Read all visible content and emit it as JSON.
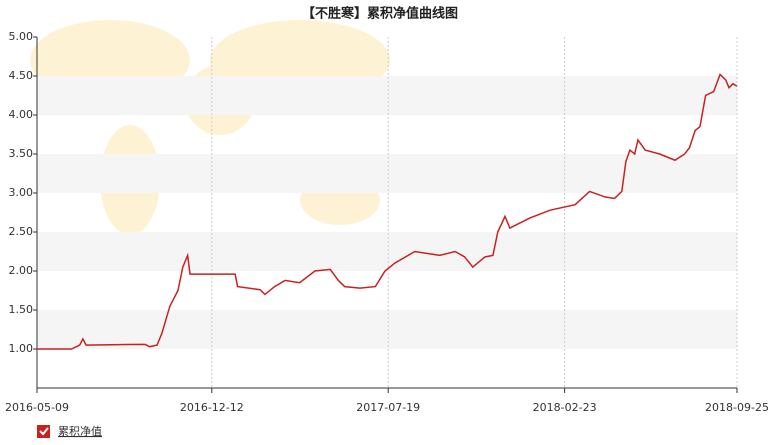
{
  "chart_data": {
    "type": "line",
    "title": "【不胜寒】累积净值曲线图",
    "x": [
      "2016-05-09",
      "2016-06-21",
      "2016-07-01",
      "2016-07-05",
      "2016-07-09",
      "2016-09-20",
      "2016-09-26",
      "2016-10-05",
      "2016-10-11",
      "2016-10-21",
      "2016-10-31",
      "2016-11-06",
      "2016-11-12",
      "2016-11-15",
      "2017-01-10",
      "2017-01-13",
      "2017-02-10",
      "2017-02-16",
      "2017-02-28",
      "2017-03-13",
      "2017-03-31",
      "2017-04-19",
      "2017-05-08",
      "2017-05-18",
      "2017-05-26",
      "2017-06-14",
      "2017-07-03",
      "2017-07-15",
      "2017-07-27",
      "2017-08-21",
      "2017-09-21",
      "2017-10-10",
      "2017-10-22",
      "2017-11-01",
      "2017-11-16",
      "2017-11-26",
      "2017-12-02",
      "2017-12-11",
      "2017-12-17",
      "2018-01-11",
      "2018-02-05",
      "2018-03-08",
      "2018-03-26",
      "2018-04-14",
      "2018-04-26",
      "2018-05-05",
      "2018-05-10",
      "2018-05-15",
      "2018-05-21",
      "2018-05-25",
      "2018-06-03",
      "2018-06-21",
      "2018-07-10",
      "2018-07-22",
      "2018-07-28",
      "2018-08-04",
      "2018-08-10",
      "2018-08-17",
      "2018-08-27",
      "2018-09-04",
      "2018-09-11",
      "2018-09-15",
      "2018-09-20",
      "2018-09-25"
    ],
    "series": [
      {
        "name": "累积净值",
        "color": "#c9211e",
        "values": [
          1.0,
          1.0,
          1.05,
          1.13,
          1.05,
          1.06,
          1.03,
          1.05,
          1.2,
          1.55,
          1.75,
          2.05,
          2.2,
          1.96,
          1.96,
          1.8,
          1.76,
          1.7,
          1.8,
          1.88,
          1.85,
          2.0,
          2.02,
          1.88,
          1.8,
          1.78,
          1.8,
          2.0,
          2.1,
          2.25,
          2.2,
          2.25,
          2.18,
          2.05,
          2.18,
          2.2,
          2.5,
          2.7,
          2.55,
          2.68,
          2.78,
          2.85,
          3.02,
          2.95,
          2.93,
          3.02,
          3.4,
          3.55,
          3.5,
          3.68,
          3.55,
          3.5,
          3.42,
          3.5,
          3.58,
          3.8,
          3.85,
          4.25,
          4.3,
          4.52,
          4.45,
          4.35,
          4.4,
          4.37
        ]
      }
    ],
    "xlim": [
      "2016-05-09",
      "2018-09-25"
    ],
    "xticks": [
      "2016-05-09",
      "2016-12-12",
      "2017-07-19",
      "2018-02-23",
      "2018-09-25"
    ],
    "ylim": [
      0.5,
      5.0
    ],
    "yticks": [
      {
        "value": 1,
        "label": "1.00"
      },
      {
        "value": 1.5,
        "label": "1.50"
      },
      {
        "value": 2,
        "label": "2.00"
      },
      {
        "value": 2.5,
        "label": "2.50"
      },
      {
        "value": 3,
        "label": "3.00"
      },
      {
        "value": 3.5,
        "label": "3.50"
      },
      {
        "value": 4,
        "label": "4.00"
      },
      {
        "value": 4.5,
        "label": "4.50"
      },
      {
        "value": 5,
        "label": "5.00"
      }
    ],
    "grid": true
  }
}
